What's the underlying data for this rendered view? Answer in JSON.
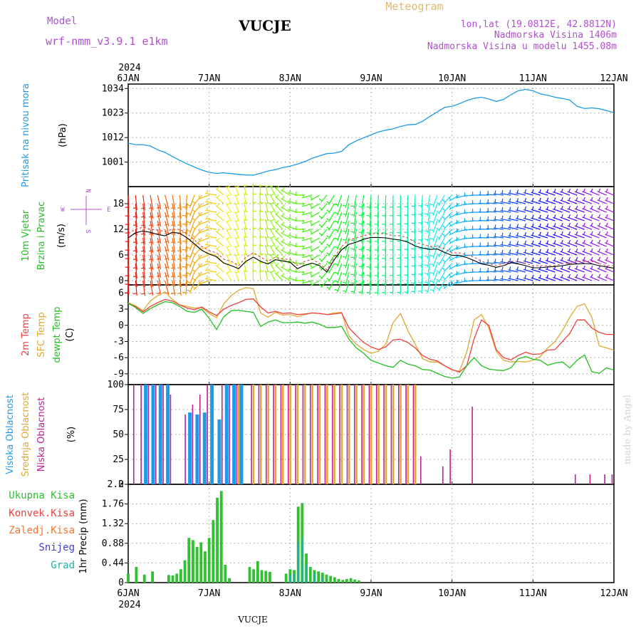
{
  "header": {
    "model_label": "Model",
    "model_name": "wrf-nmm_v3.9.1 e1km",
    "station": "VUCJE",
    "product": "Meteogram",
    "lonlat": "lon,lat (19.0812E, 42.8812N)",
    "elevation": "Nadmorska Visina 1406m",
    "model_elevation": "Nadmorska Visina u modelu 1455.08m",
    "footer_station": "VUCJE",
    "watermark": "made by Angel"
  },
  "time_axis": {
    "year_top": "2024",
    "year_bottom": "2024",
    "days": [
      "6JAN",
      "7JAN",
      "8JAN",
      "9JAN",
      "10JAN",
      "11JAN",
      "12JAN"
    ]
  },
  "colors": {
    "pressure": "#1e9be6",
    "temp2m": "#f04040",
    "sfc": "#e0a830",
    "dew": "#20c020",
    "high": "#1e9be6",
    "mid": "#e0a830",
    "low": "#c02090",
    "total": "#30c030",
    "grad": "#20b0a0"
  },
  "chart_data": [
    {
      "type": "line",
      "ylabel_lines": [
        "Pritisak na nivou mora",
        "(hPa)"
      ],
      "unit": "(hPa)",
      "ylim": [
        990,
        1036
      ],
      "yticks": [
        1001,
        1012,
        1023,
        1034
      ],
      "ytick_labels": [
        "1001",
        "1012",
        "1023",
        "1034"
      ],
      "series": [
        {
          "values": [
            1009.5,
            1008.8,
            1008.8,
            1008.2,
            1006.5,
            1005.3,
            1003.5,
            1001.8,
            1000.2,
            998.8,
            997.4,
            996.4,
            995.9,
            996.2,
            995.8,
            995.5,
            995.2,
            995.1,
            996.0,
            997.0,
            997.6,
            998.5,
            999.2,
            1000.1,
            1001.2,
            1002.7,
            1003.8,
            1004.8,
            1005.0,
            1005.8,
            1008.8,
            1010.5,
            1011.9,
            1013.2,
            1014.5,
            1015.3,
            1015.9,
            1017.0,
            1017.7,
            1017.9,
            1019.3,
            1021.5,
            1023.5,
            1025.5,
            1026.0,
            1027.2,
            1028.6,
            1029.6,
            1030.1,
            1029.3,
            1028.2,
            1029.1,
            1031.2,
            1033.0,
            1033.6,
            1033.0,
            1031.6,
            1031.0,
            1030.1,
            1029.5,
            1028.8,
            1026.0,
            1025.0,
            1025.3,
            1024.9,
            1024.1,
            1023.2
          ]
        }
      ]
    },
    {
      "type": "line",
      "ylabel_lines": [
        "10m Vjetar",
        "Brzina i Pravac",
        "(m/s)"
      ],
      "unit": "(m/s)",
      "compass": [
        "N",
        "E",
        "W",
        "S"
      ],
      "ylim": [
        -1,
        22
      ],
      "yticks": [
        0,
        6,
        12,
        18
      ],
      "ytick_labels": [
        "0",
        "6",
        "12",
        "18"
      ],
      "series": [
        {
          "values": [
            10.0,
            11.2,
            11.6,
            11.3,
            10.8,
            10.5,
            11.3,
            11.1,
            10.0,
            8.6,
            7.1,
            6.2,
            5.6,
            4.1,
            3.5,
            2.8,
            4.5,
            5.5,
            4.5,
            3.9,
            4.9,
            4.6,
            4.3,
            2.8,
            3.6,
            4.1,
            3.5,
            2.0,
            4.9,
            7.2,
            8.5,
            9.0,
            9.7,
            10.1,
            10.1,
            10.0,
            9.7,
            9.5,
            9.0,
            8.1,
            7.6,
            7.3,
            7.4,
            6.6,
            5.9,
            5.9,
            5.4,
            4.7,
            3.9,
            3.6,
            3.1,
            3.5,
            4.2,
            3.9,
            3.5,
            3.0,
            3.0,
            3.2,
            3.3,
            3.5,
            3.8,
            3.9,
            4.0,
            3.9,
            3.5,
            3.2,
            2.9
          ]
        },
        {
          "values": [
            11.0,
            12.0,
            12.5,
            12.0,
            11.8,
            11.5,
            12.0,
            12.0,
            11.0,
            9.5,
            8.0,
            7.0,
            6.5,
            5.0,
            4.5,
            3.5,
            5.5,
            6.5,
            5.5,
            4.5,
            5.5,
            5.0,
            5.0,
            3.5,
            4.5,
            5.0,
            4.0,
            2.5,
            5.5,
            8.0,
            9.5,
            10.0,
            10.5,
            11.0,
            11.0,
            11.0,
            10.5,
            10.5,
            10.0,
            9.0,
            8.5,
            8.0,
            8.0,
            7.5,
            6.5,
            6.5,
            6.0,
            5.5,
            4.5,
            4.0,
            3.5,
            4.0,
            4.5,
            4.5,
            4.0,
            3.5,
            3.5,
            3.5,
            3.5,
            4.0,
            4.0,
            4.5,
            4.5,
            4.5,
            4.0,
            3.5,
            3.5
          ]
        }
      ],
      "direction_deg": [
        178,
        175,
        172,
        170,
        168,
        165,
        170,
        175,
        185,
        200,
        220,
        250,
        280,
        310,
        330,
        340,
        350,
        358,
        355,
        345,
        330,
        315,
        300,
        285,
        270,
        255,
        240,
        220,
        210,
        200,
        195,
        190,
        188,
        185,
        183,
        182,
        181,
        180,
        181,
        183,
        185,
        190,
        200,
        210,
        225,
        240,
        255,
        265,
        270,
        272,
        275,
        278,
        280,
        282,
        283,
        285,
        286,
        287,
        288,
        289,
        290,
        290,
        290,
        291,
        292,
        292,
        292
      ]
    },
    {
      "type": "line",
      "ylabel_lines": [
        "2m Temp",
        "SFC Temp",
        "dewpt Temp",
        "(C)"
      ],
      "unit": "(C)",
      "ylim": [
        -11,
        7.5
      ],
      "yticks": [
        -9,
        -6,
        -3,
        0,
        3,
        6
      ],
      "ytick_labels": [
        "-9",
        "-6",
        "-3",
        "0",
        "3",
        "6"
      ],
      "series": [
        {
          "name": "2m Temp",
          "values": [
            4.0,
            3.5,
            2.5,
            3.5,
            4.2,
            4.8,
            4.5,
            3.8,
            3.2,
            2.9,
            3.4,
            2.5,
            1.8,
            3.0,
            3.7,
            4.2,
            4.8,
            4.9,
            3.4,
            2.3,
            2.6,
            2.2,
            2.3,
            2.0,
            2.1,
            2.3,
            2.2,
            2.0,
            2.1,
            2.3,
            -0.5,
            -1.9,
            -3.2,
            -4.0,
            -4.5,
            -4.0,
            -2.7,
            -2.6,
            -3.2,
            -4.2,
            -5.6,
            -6.3,
            -6.6,
            -7.5,
            -8.2,
            -8.7,
            -7.5,
            -2.5,
            1.0,
            0.0,
            -4.5,
            -6.0,
            -6.4,
            -5.6,
            -5.0,
            -5.4,
            -5.3,
            -4.6,
            -4.5,
            -3.0,
            -1.5,
            1.0,
            1.0,
            -0.5,
            -1.3,
            -1.7,
            -1.7
          ]
        },
        {
          "name": "SFC Temp",
          "values": [
            4.2,
            3.6,
            2.7,
            4.5,
            5.5,
            6.2,
            4.8,
            3.8,
            3.5,
            3.2,
            3.3,
            2.2,
            1.4,
            4.0,
            5.5,
            6.5,
            7.0,
            6.8,
            2.3,
            1.5,
            2.4,
            1.9,
            2.0,
            1.6,
            2.0,
            2.3,
            2.2,
            2.0,
            2.3,
            2.4,
            -2.0,
            -3.5,
            -4.5,
            -5.2,
            -4.8,
            -3.5,
            0.5,
            2.2,
            -1.0,
            -3.5,
            -6.2,
            -6.8,
            -6.8,
            -7.5,
            -8.3,
            -8.5,
            -5.0,
            1.0,
            2.0,
            -0.5,
            -4.8,
            -6.5,
            -6.8,
            -6.7,
            -6.8,
            -6.5,
            -5.8,
            -4.2,
            -3.0,
            -1.0,
            1.5,
            3.5,
            4.0,
            1.5,
            -3.8,
            -4.2,
            -4.6
          ]
        },
        {
          "name": "dewpt Temp",
          "values": [
            4.1,
            3.3,
            2.2,
            3.1,
            3.8,
            4.4,
            4.2,
            3.5,
            2.6,
            2.4,
            3.0,
            1.3,
            -0.8,
            1.6,
            2.7,
            2.8,
            2.6,
            2.4,
            -0.2,
            0.6,
            1.0,
            0.5,
            0.5,
            0.6,
            0.4,
            0.6,
            0.2,
            -0.4,
            -0.4,
            -0.2,
            -2.6,
            -4.2,
            -5.2,
            -6.5,
            -7.0,
            -7.5,
            -7.8,
            -6.5,
            -7.2,
            -7.5,
            -8.2,
            -8.3,
            -8.9,
            -9.5,
            -9.8,
            -9.6,
            -7.5,
            -6.0,
            -7.5,
            -8.1,
            -8.3,
            -8.4,
            -7.9,
            -6.2,
            -5.8,
            -6.3,
            -6.5,
            -7.4,
            -7.0,
            -6.8,
            -7.9,
            -6.5,
            -5.5,
            -8.6,
            -8.9,
            -7.9,
            -8.3
          ]
        }
      ]
    },
    {
      "type": "bar",
      "ylabel_lines": [
        "Visoka Oblacnost",
        "Srednja Oblacnost",
        "Niska Oblacnost",
        "(%)"
      ],
      "unit": "(%)",
      "ylim": [
        0,
        100
      ],
      "yticks": [
        0,
        25,
        50,
        75,
        100
      ],
      "ytick_labels": [
        "0",
        "25",
        "50",
        "75",
        "100"
      ],
      "series": [
        {
          "name": "Visoka Oblacnost",
          "values": [
            0,
            0,
            100,
            100,
            100,
            100,
            0,
            0,
            72,
            70,
            72,
            100,
            65,
            100,
            100,
            100,
            0,
            0,
            0,
            0,
            0,
            0,
            0,
            0,
            0,
            0,
            0,
            0,
            0,
            0,
            0,
            0,
            0,
            0,
            0,
            0,
            0,
            0,
            0,
            0,
            0,
            0,
            0,
            0,
            0,
            0,
            0,
            0,
            0,
            0,
            0,
            0,
            0,
            0,
            0,
            0,
            0,
            0,
            0,
            0,
            0,
            0,
            0,
            0,
            0,
            0,
            0
          ]
        },
        {
          "name": "Srednja Oblacnost",
          "values": [
            0,
            0,
            0,
            0,
            0,
            0,
            0,
            0,
            0,
            0,
            0,
            0,
            0,
            0,
            0,
            100,
            0,
            100,
            100,
            100,
            100,
            100,
            100,
            100,
            100,
            100,
            100,
            100,
            100,
            100,
            100,
            100,
            100,
            100,
            100,
            100,
            100,
            100,
            100,
            100,
            0,
            0,
            0,
            0,
            0,
            0,
            0,
            0,
            0,
            0,
            0,
            0,
            0,
            0,
            0,
            0,
            0,
            0,
            0,
            0,
            0,
            0,
            0,
            0,
            0,
            0,
            0
          ]
        },
        {
          "name": "Niska Oblacnost",
          "values": [
            0,
            100,
            100,
            100,
            100,
            100,
            90,
            0,
            70,
            80,
            90,
            100,
            0,
            100,
            100,
            100,
            0,
            100,
            100,
            100,
            100,
            100,
            100,
            100,
            100,
            100,
            100,
            100,
            100,
            100,
            100,
            100,
            100,
            100,
            100,
            100,
            100,
            100,
            100,
            100,
            28,
            0,
            0,
            18,
            35,
            0,
            0,
            78,
            0,
            0,
            0,
            0,
            0,
            0,
            0,
            0,
            0,
            0,
            0,
            0,
            0,
            10,
            0,
            10,
            0,
            10,
            10
          ]
        }
      ]
    },
    {
      "type": "bar",
      "legend": [
        "Ukupna Kisa",
        "Konvek.Kisa",
        "Zaledj.Kisa",
        "Snijeg",
        "Grad"
      ],
      "ylabel_lines": [
        "1hr Precip",
        "(mm)"
      ],
      "unit": "(mm)",
      "ylim": [
        0,
        2.2
      ],
      "yticks": [
        0,
        0.44,
        0.88,
        1.32,
        1.76,
        2.2
      ],
      "ytick_labels": [
        "0",
        "0.44",
        "0.88",
        "1.32",
        "1.76",
        "2.2"
      ],
      "series": [
        {
          "name": "Ukupna Kisa",
          "x": [
            0.0,
            0.1,
            0.2,
            0.3,
            0.5,
            0.55,
            0.6,
            0.65,
            0.7,
            0.75,
            0.8,
            0.85,
            0.9,
            0.95,
            1.0,
            1.05,
            1.1,
            1.15,
            1.2,
            1.25,
            1.5,
            1.55,
            1.6,
            1.65,
            1.7,
            1.75,
            1.95,
            2.0,
            2.05,
            2.1,
            2.15,
            2.2,
            2.25,
            2.3,
            2.35,
            2.4,
            2.45,
            2.5,
            2.55,
            2.6,
            2.65,
            2.7,
            2.75,
            2.8,
            2.85
          ],
          "values": [
            0.2,
            0.35,
            0.18,
            0.25,
            0.17,
            0.16,
            0.2,
            0.3,
            0.5,
            1.0,
            0.95,
            0.8,
            0.9,
            0.7,
            1.0,
            1.4,
            1.9,
            2.05,
            0.4,
            0.1,
            0.35,
            0.3,
            0.48,
            0.28,
            0.26,
            0.24,
            0.2,
            0.3,
            0.28,
            1.7,
            1.78,
            0.65,
            0.35,
            0.28,
            0.25,
            0.22,
            0.18,
            0.15,
            0.12,
            0.08,
            0.06,
            0.08,
            0.1,
            0.07,
            0.05
          ]
        },
        {
          "name": "Grad",
          "x": [
            2.0,
            2.05,
            2.1,
            2.15,
            2.2,
            2.3,
            2.4
          ],
          "values": [
            0.18,
            0.2,
            0.9,
            1.0,
            0.4,
            0.2,
            0.12
          ]
        }
      ]
    }
  ]
}
